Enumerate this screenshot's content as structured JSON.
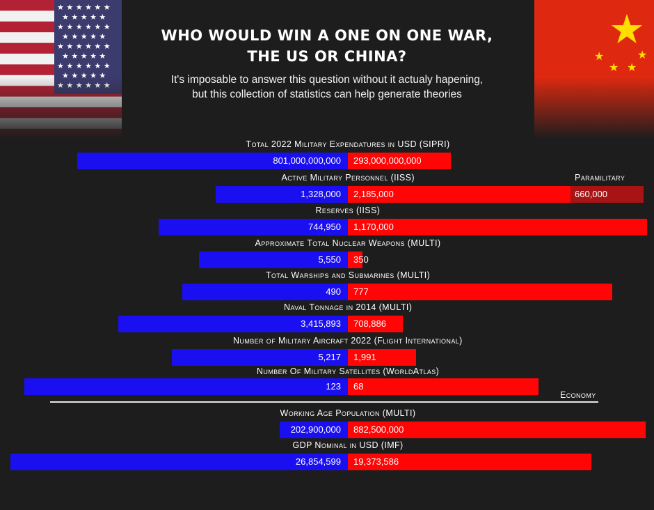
{
  "title_lines": [
    "Who would win a one on one war,",
    "the US or China?"
  ],
  "subtitle_lines": [
    "It's imposable to answer this question without it actualy hapening,",
    "but this collection of statistics can help generate theories"
  ],
  "colors": {
    "us": "#1a0ff0",
    "china": "#ff0505",
    "paramilitary": "#a81313",
    "background": "#1d1d1d"
  },
  "chart_data": {
    "type": "bar",
    "orientation": "horizontal-diverging",
    "series": [
      {
        "name": "US"
      },
      {
        "name": "China"
      }
    ],
    "rows": [
      {
        "label": "Total 2022 Military Expendatures in USD (SIPRI)",
        "us": 801000000000,
        "china": 293000000000,
        "us_text": "801,000,000,000",
        "china_text": "293,000,000,000"
      },
      {
        "label": "Active Military Personnel (IISS)",
        "us": 1328000,
        "china": 2185000,
        "us_text": "1,328,000",
        "china_text": "2,185,000",
        "extra_label": "Paramilitary",
        "extra": 660000,
        "extra_text": "660,000"
      },
      {
        "label": "Reserves (IISS)",
        "us": 744950,
        "china": 1170000,
        "us_text": "744,950",
        "china_text": "1,170,000"
      },
      {
        "label": "Approximate Total Nuclear Weapons (MULTI)",
        "us": 5550,
        "china": 350,
        "us_text": "5,550",
        "china_text": "350"
      },
      {
        "label": "Total Warships and Submarines (MULTI)",
        "us": 490,
        "china": 777,
        "us_text": "490",
        "china_text": "777"
      },
      {
        "label": "Naval Tonnage in 2014 (MULTI)",
        "us": 3415893,
        "china": 708886,
        "us_text": "3,415,893",
        "china_text": "708,886"
      },
      {
        "label": "Number of Military Aircraft 2022 (Flight International)",
        "us": 5217,
        "china": 1991,
        "us_text": "5,217",
        "china_text": "1,991"
      },
      {
        "label": "Number Of Military Satellites (WorldAtlas)",
        "us": 123,
        "china": 68,
        "us_text": "123",
        "china_text": "68"
      }
    ],
    "section_label": "Economy",
    "economy_rows": [
      {
        "label": "Working Age Population (MULTI)",
        "us": 202900000,
        "china": 882500000,
        "us_text": "202,900,000",
        "china_text": "882,500,000"
      },
      {
        "label": "GDP Nominal in USD (IMF)",
        "us": 26854599,
        "china": 19373586,
        "us_text": "26,854,599",
        "china_text": "19,373,586"
      }
    ]
  }
}
